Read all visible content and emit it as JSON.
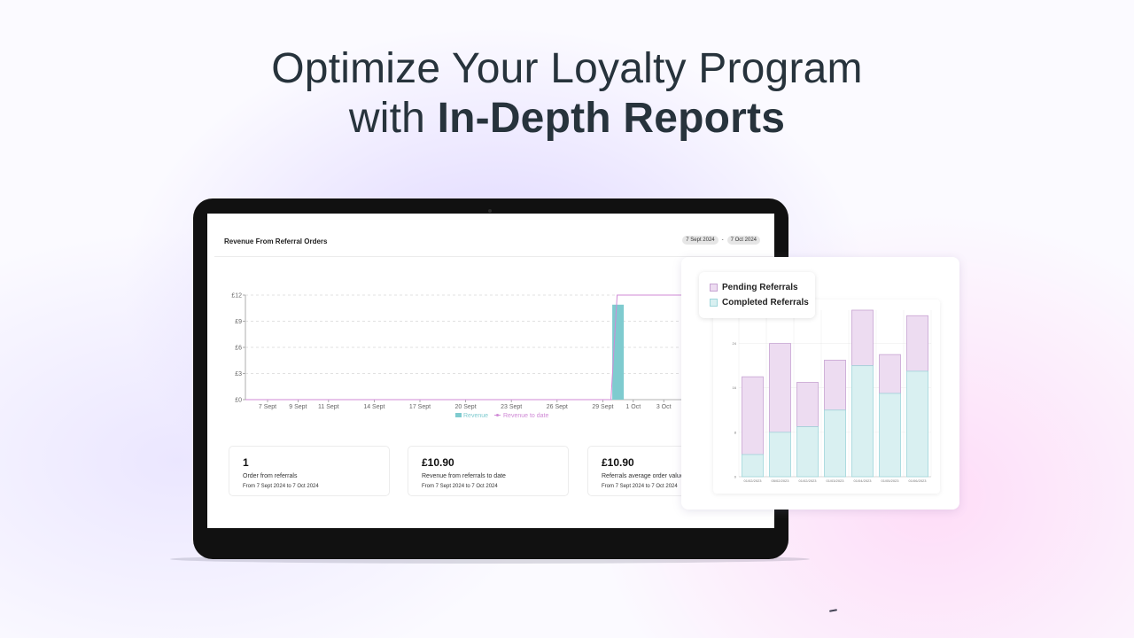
{
  "headline": {
    "line1": "Optimize Your Loyalty Program",
    "line2_prefix": "with ",
    "line2_bold": "In-Depth Reports"
  },
  "colors": {
    "teal": "#7fcbcf",
    "pink": "#d08ad6",
    "pending_fill": "#eddcf1",
    "pending_stroke": "#c7a4d2",
    "completed_fill": "#d9f0f1",
    "completed_stroke": "#9fd6da"
  },
  "report": {
    "title": "Revenue From Referral Orders",
    "date_start": "7 Sept 2024",
    "date_sep": "-",
    "date_end": "7 Oct 2024"
  },
  "chart_data": [
    {
      "type": "bar",
      "categories": [
        "7 Sept",
        "9 Sept",
        "11 Sept",
        "14 Sept",
        "17 Sept",
        "20 Sept",
        "23 Sept",
        "26 Sept",
        "29 Sept",
        "1 Oct",
        "3 Oct"
      ],
      "y_ticks": [
        "£0",
        "£3",
        "£6",
        "£9",
        "£12"
      ],
      "ylim": [
        0,
        12
      ],
      "bar_date": "30 Sept",
      "bar_value": 10.9,
      "series": [
        {
          "name": "Revenue",
          "type": "bar",
          "color": "#7fcbcf"
        },
        {
          "name": "Revenue to date",
          "type": "line",
          "color": "#d08ad6",
          "before": 0,
          "after": 12
        }
      ],
      "grid": "dashed horizontal"
    },
    {
      "type": "bar",
      "stacked": true,
      "categories": [
        "01/02/2023",
        "05/02/2023",
        "01/02/2023",
        "01/03/2023",
        "01/04/2023",
        "01/05/2023",
        "01/06/2023"
      ],
      "y_ticks": [
        "0",
        "8",
        "16",
        "24"
      ],
      "ylim": [
        0,
        30
      ],
      "series": [
        {
          "name": "Completed Referrals",
          "values": [
            4,
            8,
            9,
            12,
            20,
            15,
            19
          ]
        },
        {
          "name": "Pending Referrals",
          "values": [
            14,
            16,
            8,
            9,
            10,
            7,
            10
          ]
        }
      ],
      "legend": "top-left",
      "grid": true
    }
  ],
  "stats": [
    {
      "value": "1",
      "label": "Order from referrals",
      "period": "From 7 Sept 2024 to 7 Oct 2024"
    },
    {
      "value": "£10.90",
      "label": "Revenue from referrals to date",
      "period": "From 7 Sept 2024 to 7 Oct 2024"
    },
    {
      "value": "£10.90",
      "label": "Referrals average order value",
      "period": "From 7 Sept 2024 to 7 Oct 2024"
    }
  ]
}
